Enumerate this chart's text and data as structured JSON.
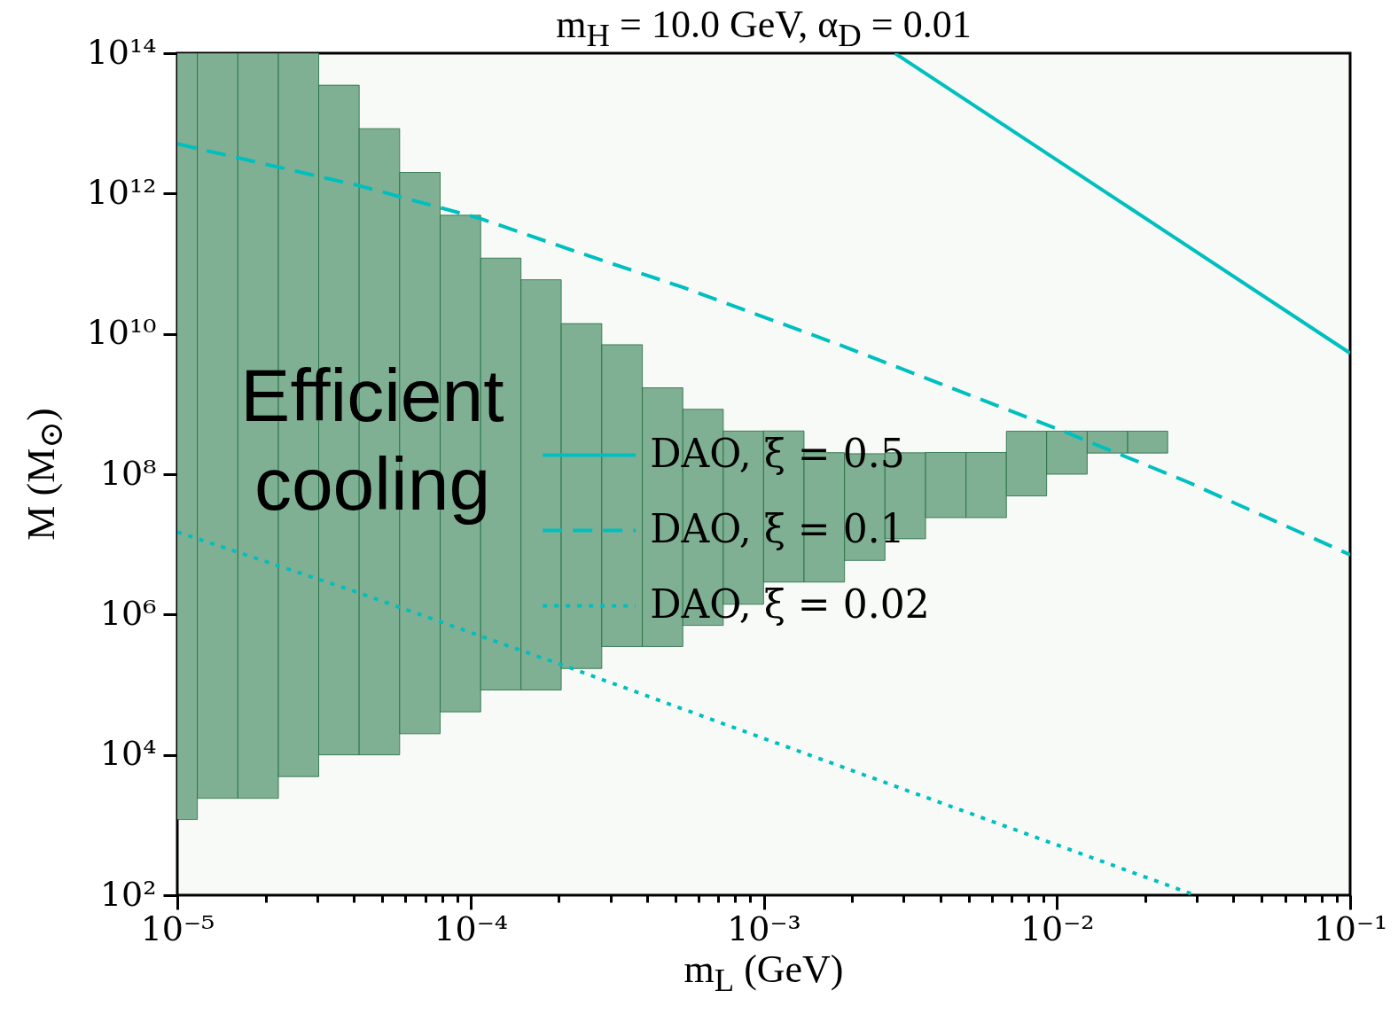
{
  "chart_data": {
    "type": "line",
    "title": "m$_{H}$ = 10.0 GeV, α$_{D}$ = 0.01",
    "xlabel": "m$_{L}$ (GeV)",
    "ylabel": "M (M$_{⊙}$)",
    "log": "xy",
    "xlim": [
      1e-05,
      0.1
    ],
    "ylim": [
      100,
      100000000000000.0
    ],
    "xticks": [
      {
        "value": 1e-05,
        "label": "10⁻⁵"
      },
      {
        "value": 2e-05,
        "label": null
      },
      {
        "value": 3e-05,
        "label": null
      },
      {
        "value": 4e-05,
        "label": null
      },
      {
        "value": 5e-05,
        "label": null
      },
      {
        "value": 6e-05,
        "label": null
      },
      {
        "value": 7e-05,
        "label": null
      },
      {
        "value": 8e-05,
        "label": null
      },
      {
        "value": 9e-05,
        "label": null
      },
      {
        "value": 0.0001,
        "label": "10⁻⁴"
      },
      {
        "value": 0.0002,
        "label": null
      },
      {
        "value": 0.0003,
        "label": null
      },
      {
        "value": 0.0004,
        "label": null
      },
      {
        "value": 0.0005,
        "label": null
      },
      {
        "value": 0.0006,
        "label": null
      },
      {
        "value": 0.0007,
        "label": null
      },
      {
        "value": 0.0008,
        "label": null
      },
      {
        "value": 0.0009,
        "label": null
      },
      {
        "value": 0.001,
        "label": "10⁻³"
      },
      {
        "value": 0.002,
        "label": null
      },
      {
        "value": 0.003,
        "label": null
      },
      {
        "value": 0.004,
        "label": null
      },
      {
        "value": 0.005,
        "label": null
      },
      {
        "value": 0.006,
        "label": null
      },
      {
        "value": 0.007,
        "label": null
      },
      {
        "value": 0.008,
        "label": null
      },
      {
        "value": 0.009,
        "label": null
      },
      {
        "value": 0.01,
        "label": "10⁻²"
      },
      {
        "value": 0.02,
        "label": null
      },
      {
        "value": 0.03,
        "label": null
      },
      {
        "value": 0.04,
        "label": null
      },
      {
        "value": 0.05,
        "label": null
      },
      {
        "value": 0.06,
        "label": null
      },
      {
        "value": 0.07,
        "label": null
      },
      {
        "value": 0.08,
        "label": null
      },
      {
        "value": 0.09,
        "label": null
      },
      {
        "value": 0.1,
        "label": "10⁻¹"
      }
    ],
    "yticks": [
      {
        "value": 100,
        "label": "10²"
      },
      {
        "value": 10000,
        "label": "10⁴"
      },
      {
        "value": 1000000,
        "label": "10⁶"
      },
      {
        "value": 100000000,
        "label": "10⁸"
      },
      {
        "value": 10000000000,
        "label": "10¹⁰"
      },
      {
        "value": 1000000000000,
        "label": "10¹²"
      },
      {
        "value": 100000000000000,
        "label": "10¹⁴"
      }
    ],
    "legend": "center",
    "annotations": [
      "Efficient cooling"
    ],
    "series": [
      {
        "name": "DAO, ξ = 0.5",
        "color": "#00bfbf",
        "line_style": "solid",
        "x": [
          0.0028,
          0.1
        ],
        "values": [
          100000000000000.0,
          5300000000.0
        ]
      },
      {
        "name": "DAO, ξ = 0.1",
        "color": "#00bfbf",
        "line_style": "dashed",
        "x": [
          1e-05,
          4.18e-05,
          0.000108,
          0.000233,
          0.00053,
          0.00181,
          0.0105,
          0.028,
          0.1
        ],
        "values": [
          5100000000000.0,
          1290000000000.0,
          440000000000.0,
          145000000000.0,
          46000000000.0,
          7000000000.0,
          410000000.0,
          77000000.0,
          7100000.0
        ]
      },
      {
        "name": "DAO, ξ = 0.02",
        "color": "#00bfbf",
        "line_style": "dotted",
        "x": [
          1e-05,
          3.95e-05,
          0.000222,
          0.00053,
          0.0296
        ],
        "values": [
          15000000.0,
          2200000.0,
          170000.0,
          45000.0,
          100
        ]
      },
      {
        "type": "bar",
        "color": "#7fb093",
        "x": [
          1e-05,
          1.37e-05,
          1.89e-05,
          2.59e-05,
          3.56e-05,
          4.89e-05,
          6.72e-05,
          9.24e-05,
          0.000127,
          0.000174,
          0.000239,
          0.000329,
          0.000452,
          0.000621,
          0.000853,
          0.00117,
          0.00161,
          0.00221,
          0.00304,
          0.00418,
          0.00574,
          0.00788,
          0.0108,
          0.0149,
          0.0204
        ],
        "base": [
          1200,
          2400,
          2400,
          4900,
          10000,
          10000,
          20000,
          41000,
          84000,
          84000,
          170000,
          350000,
          350000,
          700000,
          1400000,
          2900000,
          2900000,
          5900000,
          12000000,
          24000000,
          24000000,
          49000000,
          100000000,
          200000000,
          200000000
        ],
        "values": [
          99999999998800,
          99999999997600,
          99999999997600,
          99999999995100,
          35000000000000.0,
          8400000000000.0,
          2000000000000.0,
          490000000000.0,
          120000000000.0,
          59000000000.0,
          14000000000.0,
          7000000000.0,
          1700000000.0,
          840000000.0,
          410000000.0,
          410000000.0,
          200000000.0,
          190000000.0,
          190000000.0,
          180000000.0,
          180000000.0,
          360000000.0,
          310000000.0,
          210000000.0,
          210000000.0
        ]
      }
    ]
  }
}
